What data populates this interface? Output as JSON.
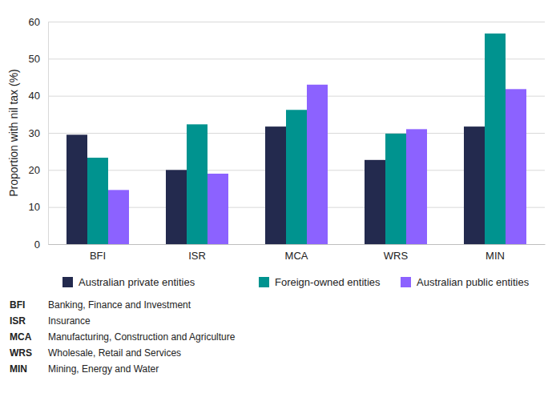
{
  "chart_data": {
    "type": "bar",
    "y_label": "Proportion with nil tax (%)",
    "categories": [
      "BFI",
      "ISR",
      "MCA",
      "WRS",
      "MIN"
    ],
    "category_descriptions": [
      "Banking, Finance and Investment",
      "Insurance",
      "Manufacturing, Construction and Agriculture",
      "Wholesale, Retail and Services",
      "Mining, Energy and Water"
    ],
    "series": [
      {
        "name": "Australian private entities",
        "color": "#232a4e",
        "values": [
          29.5,
          20,
          31.7,
          22.7,
          31.7
        ]
      },
      {
        "name": "Foreign-owned entities",
        "color": "#00938f",
        "values": [
          23.3,
          32.3,
          36.2,
          29.8,
          56.8
        ]
      },
      {
        "name": "Australian public entities",
        "color": "#8c62ff",
        "values": [
          14.6,
          19,
          43,
          31,
          41.8
        ]
      }
    ],
    "ylim": [
      0,
      60
    ],
    "yticks": [
      0,
      10,
      20,
      30,
      40,
      50,
      60
    ],
    "grid": true,
    "legend": "bottom"
  }
}
